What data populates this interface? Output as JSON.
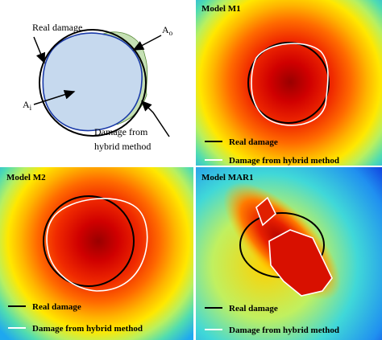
{
  "schematic": {
    "real_damage": "Real damage",
    "a_o": {
      "base": "A",
      "sub": "o"
    },
    "a_i": {
      "base": "A",
      "sub": "i"
    },
    "hybrid": [
      "Damage from",
      "hybrid method"
    ]
  },
  "panels": [
    {
      "title": "Model M1",
      "legend": [
        "Real damage",
        "Damage from hybrid method"
      ]
    },
    {
      "title": "Model M2",
      "legend": [
        "Real damage",
        "Damage from hybrid method"
      ]
    },
    {
      "title": "Model MAR1",
      "legend": [
        "Real damage",
        "Damage from hybrid method"
      ]
    }
  ]
}
